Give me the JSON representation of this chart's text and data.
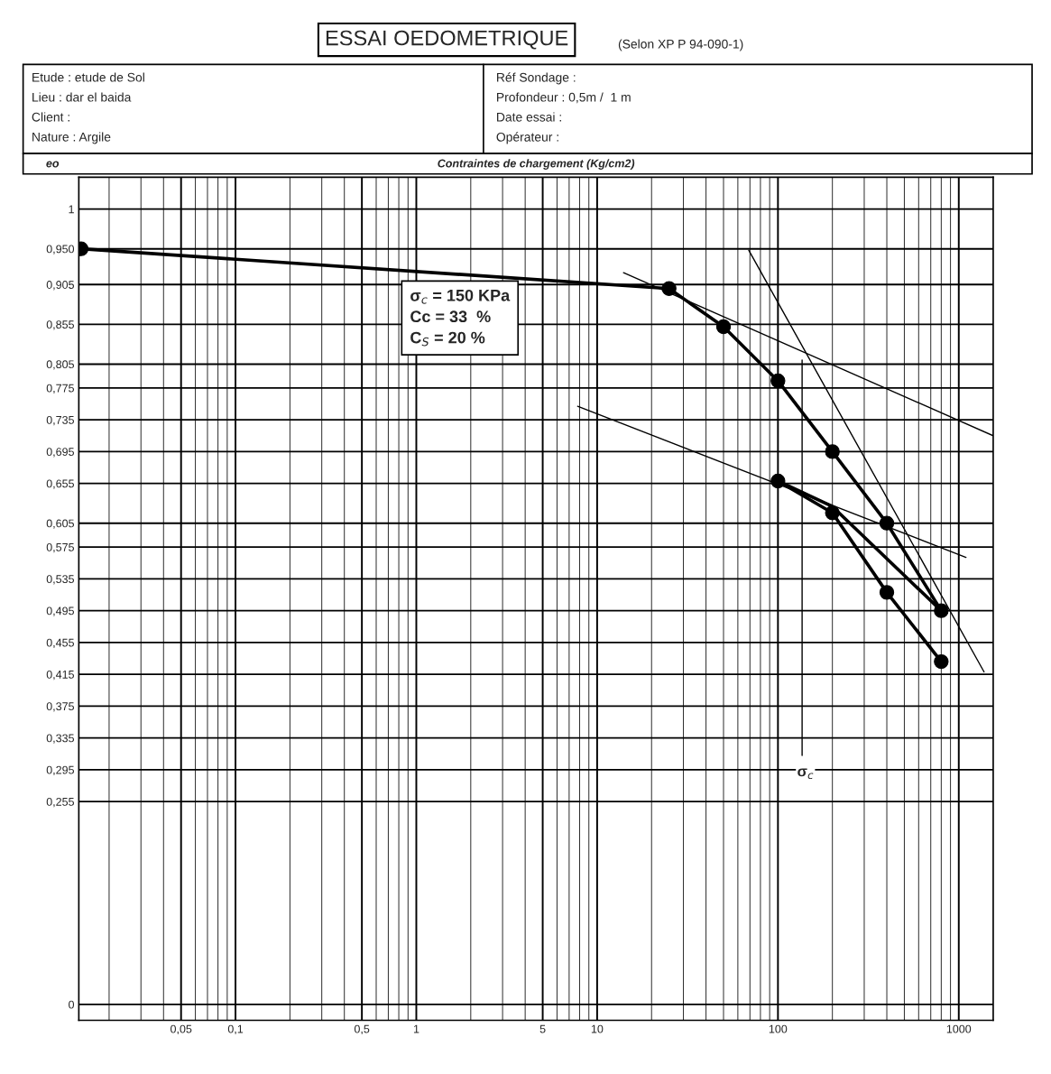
{
  "chart_data": {
    "type": "line",
    "title": "ESSAI OEDOMETRIQUE",
    "subtitle": "(Selon XP P 94-090-1)",
    "xlabel": "Contraintes de chargement (Kg/cm2)",
    "ylabel": "eo",
    "log": "x",
    "grid": true,
    "legend": false,
    "xlim": [
      0.0136,
      1550
    ],
    "xticks": [
      {
        "value": 0.05,
        "label": "0,05"
      },
      {
        "value": 0.1,
        "label": "0,1"
      },
      {
        "value": 0.5,
        "label": "0,5"
      },
      1,
      5,
      10,
      100,
      1000
    ],
    "ylim": [
      -0.02,
      1.04
    ],
    "yticks": [
      0,
      {
        "value": 0.255,
        "label": "0,255"
      },
      {
        "value": 0.295,
        "label": "0,295"
      },
      {
        "value": 0.335,
        "label": "0,335"
      },
      {
        "value": 0.375,
        "label": "0,375"
      },
      {
        "value": 0.415,
        "label": "0,415"
      },
      {
        "value": 0.455,
        "label": "0,455"
      },
      {
        "value": 0.495,
        "label": "0,495"
      },
      {
        "value": 0.535,
        "label": "0,535"
      },
      {
        "value": 0.575,
        "label": "0,575"
      },
      {
        "value": 0.605,
        "label": "0,605"
      },
      {
        "value": 0.655,
        "label": "0,655"
      },
      {
        "value": 0.695,
        "label": "0,695"
      },
      {
        "value": 0.735,
        "label": "0,735"
      },
      {
        "value": 0.775,
        "label": "0,775"
      },
      {
        "value": 0.805,
        "label": "0,805"
      },
      {
        "value": 0.855,
        "label": "0,855"
      },
      {
        "value": 0.905,
        "label": "0,905"
      },
      {
        "value": 0.95,
        "label": "0,950"
      },
      1
    ],
    "series": [
      {
        "color": "#000000",
        "marker": "circle",
        "x": [
          0.014,
          25,
          50,
          100,
          200,
          400,
          800
        ],
        "values": [
          0.95,
          0.9,
          0.852,
          0.784,
          0.695,
          0.605,
          0.495
        ]
      },
      {
        "color": "#000000",
        "marker": "none",
        "x": [
          800,
          200,
          100
        ],
        "values": [
          0.495,
          0.626,
          0.658
        ]
      },
      {
        "color": "#000000",
        "marker": "circle",
        "x": [
          100,
          200,
          400,
          800
        ],
        "values": [
          0.658,
          0.618,
          0.518,
          0.431
        ]
      },
      {
        "color": "#000000",
        "marker": "none",
        "x": [
          14,
          1550
        ],
        "values": [
          0.92,
          0.715
        ]
      },
      {
        "color": "#000000",
        "marker": "none",
        "x": [
          69,
          1380
        ],
        "values": [
          0.948,
          0.418
        ]
      },
      {
        "color": "#000000",
        "marker": "none",
        "x": [
          7.8,
          1096
        ],
        "values": [
          0.752,
          0.562
        ]
      },
      {
        "color": "#000000",
        "marker": "none",
        "x": [
          136,
          136
        ],
        "values": [
          0.81,
          0.313
        ]
      }
    ],
    "annotations": [
      "Etude : etude de Sol",
      "Lieu : dar el baida",
      "Client :",
      "Nature : Argile",
      "Réf Sondage :",
      "Profondeur : 0,5m /  1 m",
      "Date essai :",
      "Opérateur :",
      "σ$_{c}$ = 150 KPa",
      "Cc = 33  %",
      "C$_{S}$ = 20 %",
      "σ$_{c}$"
    ]
  }
}
